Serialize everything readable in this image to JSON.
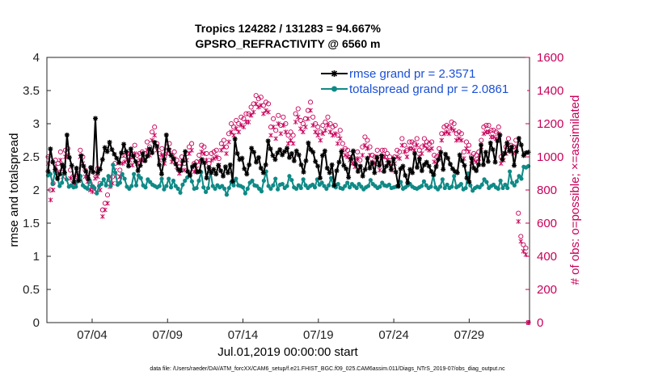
{
  "colors": {
    "rmse": "#000000",
    "totalspread": "#0e8a86",
    "obs": "#c8005a",
    "legend_text": "#1a4fd6"
  },
  "chart_data": {
    "type": "line",
    "title": "Tropics 124282 / 131283 = 94.667%",
    "subtitle": "GPSRO_REFRACTIVITY @ 6560 m",
    "xlabel": "Jul.01,2019 00:00:00 start",
    "ylabel": "rmse and totalspread",
    "y2label": "# of obs: o=possible; ×=assimilated",
    "xlim": [
      0,
      32
    ],
    "ylim": [
      0,
      4
    ],
    "y2lim": [
      0,
      1600
    ],
    "x_tick_values": [
      3,
      8,
      13,
      18,
      23,
      28
    ],
    "x_tick_labels": [
      "07/04",
      "07/09",
      "07/14",
      "07/19",
      "07/24",
      "07/29"
    ],
    "y_tick_labels": [
      "0",
      "0.5",
      "1",
      "1.5",
      "2",
      "2.5",
      "3",
      "3.5",
      "4"
    ],
    "y2_tick_labels": [
      "0",
      "200",
      "400",
      "600",
      "800",
      "1000",
      "1200",
      "1400",
      "1600"
    ],
    "series": [
      {
        "name": "rmse grand pr = 2.3571",
        "axis": "left",
        "values": [
          2.28,
          2.62,
          2.42,
          2.31,
          2.17,
          2.24,
          2.38,
          2.26,
          2.83,
          2.49,
          2.37,
          2.12,
          2.33,
          2.14,
          2.52,
          2.36,
          2.28,
          2.17,
          2.34,
          2.27,
          3.08,
          2.26,
          2.31,
          2.46,
          2.64,
          2.58,
          2.72,
          2.61,
          2.54,
          2.48,
          2.41,
          2.56,
          2.69,
          2.58,
          2.36,
          2.62,
          2.51,
          2.43,
          2.29,
          2.37,
          2.55,
          2.44,
          2.51,
          2.62,
          2.56,
          2.72,
          2.66,
          2.38,
          2.24,
          2.46,
          2.83,
          2.61,
          2.52,
          2.47,
          2.39,
          2.31,
          2.29,
          2.44,
          2.58,
          2.28,
          2.22,
          2.35,
          2.38,
          2.27,
          2.28,
          2.46,
          2.41,
          2.18,
          2.34,
          2.26,
          2.31,
          2.24,
          2.37,
          2.29,
          2.21,
          2.35,
          2.26,
          2.38,
          2.13,
          2.77,
          2.55,
          2.46,
          2.48,
          2.32,
          2.24,
          2.38,
          2.63,
          2.57,
          2.42,
          2.49,
          2.33,
          2.26,
          2.38,
          2.74,
          2.62,
          2.52,
          2.46,
          2.56,
          2.61,
          2.53,
          2.58,
          2.63,
          2.49,
          2.55,
          2.44,
          2.59,
          2.53,
          2.38,
          2.27,
          2.44,
          2.71,
          2.61,
          2.57,
          2.43,
          2.36,
          2.18,
          2.52,
          2.59,
          2.33,
          2.26,
          2.38,
          2.07,
          2.29,
          2.42,
          2.58,
          2.37,
          2.32,
          2.19,
          2.47,
          2.59,
          2.39,
          2.28,
          2.36,
          2.21,
          2.31,
          2.48,
          2.33,
          2.41,
          2.26,
          2.49,
          2.37,
          2.52,
          2.28,
          2.36,
          2.42,
          2.31,
          2.47,
          2.27,
          2.06,
          2.32,
          2.36,
          2.22,
          2.11,
          2.31,
          2.26,
          2.55,
          2.34,
          2.47,
          2.29,
          2.38,
          2.42,
          2.36,
          2.28,
          2.23,
          2.35,
          2.46,
          2.57,
          2.31,
          2.54,
          2.48,
          2.39,
          2.32,
          2.28,
          2.26,
          2.53,
          2.44,
          2.37,
          2.18,
          2.12,
          2.48,
          2.33,
          2.29,
          2.38,
          2.68,
          2.38,
          2.57,
          2.43,
          2.71,
          2.61,
          2.42,
          2.74,
          2.83,
          2.46,
          2.55,
          2.71,
          2.59,
          2.65,
          2.37,
          2.58,
          2.78,
          2.68,
          2.52,
          2.56,
          2.57
        ]
      },
      {
        "name": "totalspread grand pr = 2.0861",
        "axis": "left",
        "values": [
          2.22,
          2.24,
          2.09,
          2.27,
          2.19,
          2.06,
          2.11,
          2.35,
          2.16,
          2.05,
          2.07,
          2.04,
          2.05,
          2.15,
          2.21,
          2.07,
          2.04,
          2.02,
          2.14,
          2.06,
          2.03,
          1.95,
          2.06,
          2.09,
          2.16,
          2.07,
          2.21,
          2.06,
          2.38,
          2.26,
          2.08,
          2.11,
          2.24,
          2.17,
          2.05,
          2.02,
          2.06,
          2.24,
          2.07,
          2.22,
          2.18,
          2.07,
          2.04,
          2.16,
          2.12,
          2.08,
          2.06,
          2.04,
          2.06,
          2.17,
          2.01,
          2.06,
          2.17,
          2.04,
          2.14,
          2.06,
          2.02,
          1.96,
          2.08,
          2.14,
          2.19,
          2.24,
          2.13,
          2.02,
          2.03,
          2.14,
          2.27,
          2.04,
          1.97,
          2.03,
          2.28,
          2.06,
          2.02,
          2.07,
          2.04,
          2.06,
          2.02,
          1.93,
          2.03,
          2.12,
          2.07,
          2.17,
          2.07,
          2.06,
          2.04,
          1.95,
          2.02,
          2.11,
          2.14,
          2.07,
          2.06,
          2.02,
          1.98,
          2.14,
          2.28,
          2.06,
          2.02,
          2.07,
          2.17,
          2.01,
          2.08,
          2.09,
          2.03,
          2.06,
          2.21,
          2.15,
          2.04,
          2.02,
          2.07,
          2.03,
          2.16,
          2.07,
          2.03,
          2.06,
          2.08,
          2.04,
          2.16,
          2.08,
          2.11,
          2.06,
          2.02,
          2.07,
          2.18,
          2.06,
          2.04,
          2.09,
          2.03,
          2.02,
          2.06,
          2.11,
          2.04,
          2.09,
          2.06,
          2.03,
          2.09,
          2.05,
          2.01,
          2.04,
          2.06,
          2.15,
          2.09,
          2.06,
          2.03,
          2.05,
          2.11,
          2.07,
          2.06,
          2.08,
          2.03,
          2.04,
          2.05,
          2.05,
          2.12,
          2.02,
          2.04,
          2.07,
          2.09,
          2.05,
          2.03,
          2.02,
          2.04,
          2.06,
          2.13,
          2.07,
          2.03,
          2.05,
          2.22,
          2.04,
          2.01,
          2.05,
          2.16,
          2.03,
          2.08,
          2.03,
          2.05,
          2.21,
          2.04,
          2.06,
          2.09,
          2.01,
          2.03,
          2.25,
          2.07,
          1.99,
          2.03,
          2.05,
          2.04,
          2.08,
          2.16,
          2.12,
          2.03,
          2.06,
          2.08,
          2.04,
          2.02,
          2.14,
          2.03,
          2.08,
          2.03,
          2.28,
          2.11,
          2.07,
          2.13,
          2.21,
          2.17,
          2.35,
          2.34,
          2.36
        ]
      },
      {
        "name": "possible",
        "axis": "right",
        "marker": "circle",
        "values": [
          1000,
          800,
          840,
          980,
          960,
          1030,
          930,
          1040,
          1050,
          920,
          880,
          870,
          900,
          1040,
          1000,
          920,
          890,
          840,
          820,
          900,
          930,
          840,
          680,
          720,
          770,
          860,
          880,
          960,
          880,
          920,
          1010,
          1010,
          1020,
          1020,
          1000,
          1070,
          1010,
          1020,
          1030,
          1020,
          1090,
          1060,
          1150,
          1180,
          1080,
          1020,
          1050,
          1000,
          1060,
          1080,
          1010,
          1030,
          980,
          940,
          1000,
          960,
          1020,
          1060,
          1080,
          960,
          970,
          1010,
          1070,
          1060,
          1020,
          960,
          1020,
          1030,
          1040,
          990,
          1080,
          1100,
          1060,
          1140,
          1200,
          1180,
          1220,
          1200,
          1240,
          1230,
          1260,
          1260,
          1300,
          1320,
          1370,
          1350,
          1360,
          1310,
          1330,
          1320,
          1180,
          1230,
          1160,
          1250,
          1190,
          1240,
          1200,
          1130,
          1150,
          1130,
          1260,
          1290,
          1220,
          1200,
          1230,
          1280,
          1330,
          1240,
          1200,
          1180,
          1150,
          1190,
          1210,
          1240,
          1200,
          1180,
          1190,
          1130,
          1160,
          1080,
          1050,
          1040,
          1020,
          1000,
          980,
          1030,
          980,
          1060,
          1120,
          1100,
          1060,
          1010,
          1000,
          1040,
          960,
          1040,
          1040,
          1020,
          1000,
          960,
          1000,
          1040,
          1030,
          1110,
          1070,
          1040,
          1090,
          1090,
          1080,
          1110,
          1040,
          1060,
          1110,
          1090,
          1080,
          1090,
          1010,
          1000,
          1050,
          1140,
          1180,
          1190,
          1180,
          1210,
          1200,
          1140,
          1150,
          1140,
          1030,
          1090,
          1070,
          1000,
          1020,
          1010,
          1030,
          1100,
          1180,
          1190,
          1190,
          1160,
          1160,
          1150,
          1180,
          1000,
          1020,
          1060,
          1110,
          1070,
          1060,
          1100,
          660,
          520,
          470,
          450,
          0
        ]
      },
      {
        "name": "assimilated",
        "axis": "right",
        "marker": "x",
        "values": [
          960,
          740,
          800,
          940,
          910,
          980,
          880,
          1000,
          1010,
          870,
          840,
          830,
          860,
          1000,
          960,
          880,
          850,
          800,
          790,
          870,
          880,
          800,
          640,
          680,
          720,
          820,
          840,
          920,
          840,
          880,
          960,
          970,
          980,
          980,
          950,
          1020,
          960,
          980,
          980,
          980,
          1040,
          1010,
          1100,
          1130,
          1040,
          980,
          1010,
          960,
          1020,
          1040,
          970,
          990,
          940,
          900,
          960,
          920,
          980,
          1020,
          1040,
          910,
          930,
          970,
          1030,
          1020,
          980,
          920,
          980,
          990,
          1000,
          950,
          1040,
          1060,
          1020,
          1090,
          1150,
          1130,
          1170,
          1150,
          1190,
          1180,
          1210,
          1210,
          1250,
          1270,
          1320,
          1300,
          1310,
          1260,
          1280,
          1270,
          1130,
          1180,
          1110,
          1200,
          1140,
          1190,
          1150,
          1080,
          1100,
          1080,
          1210,
          1240,
          1170,
          1150,
          1180,
          1230,
          1280,
          1190,
          1150,
          1130,
          1100,
          1140,
          1160,
          1190,
          1150,
          1130,
          1140,
          1080,
          1110,
          1040,
          1010,
          1000,
          980,
          960,
          940,
          990,
          940,
          1010,
          1070,
          1050,
          1010,
          970,
          960,
          1000,
          920,
          1000,
          1000,
          980,
          960,
          920,
          960,
          1000,
          990,
          1070,
          1030,
          1000,
          1050,
          1050,
          1040,
          1070,
          1000,
          1020,
          1070,
          1050,
          1040,
          1050,
          970,
          960,
          1010,
          1100,
          1140,
          1150,
          1140,
          1170,
          1160,
          1100,
          1110,
          1100,
          990,
          1050,
          1030,
          960,
          980,
          970,
          990,
          1060,
          1140,
          1150,
          1150,
          1120,
          1120,
          1110,
          1140,
          960,
          980,
          1020,
          1070,
          1030,
          1020,
          1060,
          610,
          490,
          430,
          410,
          0
        ]
      }
    ],
    "footnote": "data file: /Users/raeder/DAI/ATM_forcXX/CAM6_setup/f.e21.FHIST_BGC.f09_025.CAM6assim.011/Diags_NTrS_2019-07/obs_diag_output.nc"
  }
}
